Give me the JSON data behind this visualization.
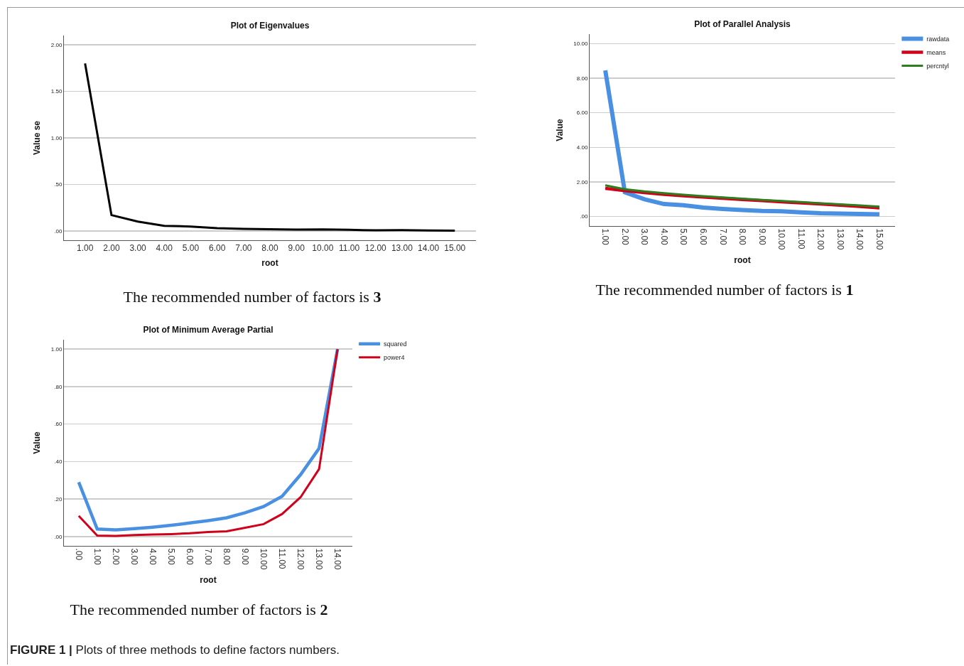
{
  "chart_data": [
    {
      "type": "line",
      "title": "Plot of Eigenvalues",
      "xlabel": "root",
      "ylabel": "Value se",
      "categories": [
        "1.00",
        "2.00",
        "3.00",
        "4.00",
        "5.00",
        "6.00",
        "7.00",
        "8.00",
        "9.00",
        "10.00",
        "11.00",
        "12.00",
        "13.00",
        "14.00",
        "15.00"
      ],
      "series": [
        {
          "color": "#000000",
          "values": [
            1.8,
            0.17,
            0.1,
            0.055,
            0.048,
            0.03,
            0.022,
            0.018,
            0.015,
            0.017,
            0.012,
            0.006,
            0.008,
            0.005,
            0.003
          ]
        }
      ],
      "ylim": [
        -0.1,
        2.1
      ],
      "yticks": [
        {
          "value": 0,
          "label": ".00"
        },
        {
          "value": 0.5,
          "label": ".50"
        },
        {
          "value": 1,
          "label": "1.00"
        },
        {
          "value": 1.5,
          "label": "1.50"
        },
        {
          "value": 2,
          "label": "2.00"
        }
      ],
      "grid": "y",
      "legend": false,
      "annotations": [
        "The recommended number of factors is 3"
      ]
    },
    {
      "type": "line",
      "title": "Plot of Parallel Analysis",
      "xlabel": "root",
      "ylabel": "Value",
      "categories": [
        "1.00",
        "2.00",
        "3.00",
        "4.00",
        "5.00",
        "6.00",
        "7.00",
        "8.00",
        "9.00",
        "10.00",
        "11.00",
        "12.00",
        "13.00",
        "14.00",
        "15.00"
      ],
      "series": [
        {
          "name": "rawdata",
          "color": "#4a90e2",
          "values": [
            8.45,
            1.4,
            1.0,
            0.72,
            0.65,
            0.52,
            0.44,
            0.38,
            0.32,
            0.3,
            0.24,
            0.19,
            0.17,
            0.15,
            0.13
          ]
        },
        {
          "name": "means",
          "color": "#d0021b",
          "values": [
            1.63,
            1.5,
            1.38,
            1.28,
            1.2,
            1.12,
            1.05,
            0.98,
            0.92,
            0.85,
            0.79,
            0.72,
            0.65,
            0.58,
            0.5
          ]
        },
        {
          "name": "percntyl",
          "color": "#2e7d1e",
          "values": [
            1.8,
            1.58,
            1.45,
            1.35,
            1.26,
            1.18,
            1.1,
            1.03,
            0.96,
            0.9,
            0.84,
            0.77,
            0.7,
            0.64,
            0.57
          ]
        }
      ],
      "ylim": [
        -0.55,
        10.55
      ],
      "yticks": [
        {
          "value": 0,
          "label": ".00"
        },
        {
          "value": 2,
          "label": "2.00"
        },
        {
          "value": 4,
          "label": "4.00"
        },
        {
          "value": 6,
          "label": "6.00"
        },
        {
          "value": 8,
          "label": "8.00"
        },
        {
          "value": 10,
          "label": "10.00"
        }
      ],
      "grid": "y",
      "legend": "top right",
      "annotations": [
        "The recommended number of factors is 1"
      ]
    },
    {
      "type": "line",
      "title": "Plot of Minimum Average Partial",
      "xlabel": "root",
      "ylabel": "Value",
      "categories": [
        ".00",
        "1.00",
        "2.00",
        "3.00",
        "4.00",
        "5.00",
        "6.00",
        "7.00",
        "8.00",
        "9.00",
        "10.00",
        "11.00",
        "12.00",
        "13.00",
        "14.00"
      ],
      "series": [
        {
          "name": "squared",
          "color": "#4a90e2",
          "values": [
            0.29,
            0.04,
            0.035,
            0.042,
            0.05,
            0.06,
            0.072,
            0.085,
            0.1,
            0.127,
            0.16,
            0.215,
            0.33,
            0.47,
            1.0
          ]
        },
        {
          "name": "power4",
          "color": "#d0021b",
          "values": [
            0.11,
            0.005,
            0.003,
            0.008,
            0.011,
            0.013,
            0.017,
            0.024,
            0.028,
            0.047,
            0.066,
            0.12,
            0.21,
            0.36,
            1.0
          ]
        }
      ],
      "ylim": [
        -0.05,
        1.05
      ],
      "yticks": [
        {
          "value": 0,
          "label": ".00"
        },
        {
          "value": 0.2,
          "label": ".20"
        },
        {
          "value": 0.4,
          "label": ".40"
        },
        {
          "value": 0.6,
          "label": ".60"
        },
        {
          "value": 0.8,
          "label": ".80"
        },
        {
          "value": 1,
          "label": "1.00"
        }
      ],
      "grid": "y",
      "legend": "top right",
      "annotations": [
        "The recommended number of factors is 2",
        "FIGURE 1 | Plots of three methods to define factors numbers."
      ]
    }
  ]
}
